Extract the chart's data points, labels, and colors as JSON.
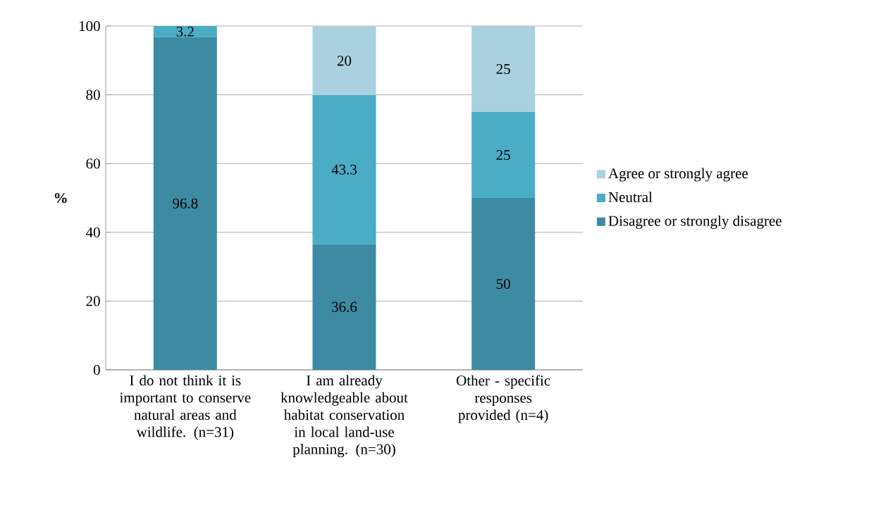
{
  "chart_data": {
    "type": "bar",
    "stacked": true,
    "categories": [
      "I do not think it is important to conserve natural areas and wildlife. (n=31)",
      "I am already knowledgeable about habitat conservation in local land-use planning. (n=30)",
      "Other - specific responses provided (n=4)"
    ],
    "series": [
      {
        "name": "Disagree or strongly disagree",
        "color": "#3d8ba3",
        "values": [
          96.8,
          36.6,
          50
        ],
        "value_labels": [
          "96.8",
          "36.6",
          "50"
        ]
      },
      {
        "name": "Neutral",
        "color": "#4bacc6",
        "values": [
          3.2,
          43.3,
          25
        ],
        "value_labels": [
          "3.2",
          "43.3",
          "25"
        ]
      },
      {
        "name": "Agree or strongly agree",
        "color": "#a9d1df",
        "values": [
          null,
          20,
          25
        ],
        "value_labels": [
          null,
          "20",
          "25"
        ]
      }
    ],
    "ylabel": "%",
    "ylim": [
      0,
      100
    ],
    "yticks": [
      0,
      20,
      40,
      60,
      80,
      100
    ],
    "grid": "y",
    "legend": "right"
  }
}
